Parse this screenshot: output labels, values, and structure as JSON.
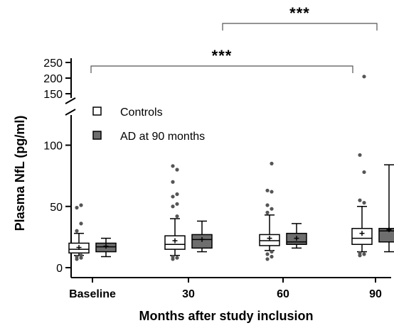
{
  "chart_data": {
    "type": "box",
    "title": "",
    "xlabel": "Months after study inclusion",
    "ylabel": "Plasma NfL (pg/ml)",
    "y_scale": "broken",
    "ylim_lower": [
      0,
      120
    ],
    "ylim_upper": [
      150,
      250
    ],
    "y_ticks_lower": [
      0,
      50,
      100
    ],
    "y_ticks_upper": [
      150,
      200,
      250
    ],
    "categories": [
      "Baseline",
      "30",
      "60",
      "90"
    ],
    "legend_position": "top-left",
    "grid": false,
    "colors": {
      "controls": "#ffffff",
      "ad": "#6e6e6e",
      "points": "#555555",
      "axis": "#000000"
    },
    "series": [
      {
        "name": "Controls",
        "boxes": [
          {
            "category": "Baseline",
            "min": 10,
            "q1": 12,
            "median": 15,
            "q3": 20,
            "max": 28,
            "mean": 16.5,
            "outliers": [
              7,
              8,
              9,
              10,
              30,
              36,
              49,
              51
            ]
          },
          {
            "category": "30",
            "min": 10,
            "q1": 15,
            "median": 19,
            "q3": 26,
            "max": 40,
            "mean": 22,
            "outliers": [
              7,
              8,
              9,
              42,
              50,
              52,
              58,
              60,
              70,
              80,
              83
            ]
          },
          {
            "category": "60",
            "min": 14,
            "q1": 18,
            "median": 22,
            "q3": 27,
            "max": 43,
            "mean": 24,
            "outliers": [
              7,
              9,
              11,
              13,
              45,
              48,
              51,
              62,
              63,
              85
            ]
          },
          {
            "category": "90",
            "min": 13,
            "q1": 19,
            "median": 24,
            "q3": 32,
            "max": 50,
            "mean": 28,
            "outliers": [
              10,
              11,
              12,
              53,
              55,
              78,
              92,
              205
            ]
          }
        ]
      },
      {
        "name": "AD at 90 months",
        "boxes": [
          {
            "category": "Baseline",
            "min": 9,
            "q1": 13,
            "median": 17,
            "q3": 20,
            "max": 24,
            "mean": 17.5,
            "outliers": []
          },
          {
            "category": "30",
            "min": 13,
            "q1": 16,
            "median": 23,
            "q3": 27,
            "max": 38,
            "mean": 23,
            "outliers": []
          },
          {
            "category": "60",
            "min": 16,
            "q1": 19,
            "median": 21,
            "q3": 28,
            "max": 36,
            "mean": 24,
            "outliers": []
          },
          {
            "category": "90",
            "min": 13,
            "q1": 21,
            "median": 30,
            "q3": 32,
            "max": 84,
            "mean": 31,
            "outliers": []
          }
        ]
      }
    ],
    "annotations": [
      {
        "text": "***",
        "from_category": "Baseline",
        "to_category": "90",
        "bracket": "lower"
      },
      {
        "text": "***",
        "from_category": "30",
        "to_category": "90",
        "bracket": "upper"
      }
    ]
  }
}
